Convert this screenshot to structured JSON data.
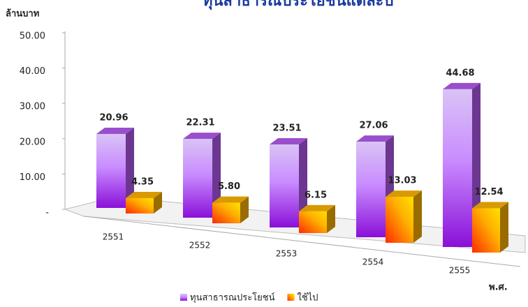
{
  "chart_data": {
    "type": "bar3d",
    "title": "ทุนสาธารณประโยชน์แต่ละปี",
    "y_label": "ล้านบาท",
    "x_label": "พ.ศ.",
    "categories": [
      "2551",
      "2552",
      "2553",
      "2554",
      "2555"
    ],
    "series": [
      {
        "name": "ทุนสาธารณประโยชน์",
        "color": "#b45cf0",
        "values": [
          20.96,
          22.31,
          23.51,
          27.06,
          44.68
        ],
        "value_labels": [
          "20.96",
          "22.31",
          "23.51",
          "27.06",
          "44.68"
        ]
      },
      {
        "name": "ใช้ไป",
        "color": "#ffb400",
        "values": [
          4.35,
          5.8,
          6.15,
          13.03,
          12.54
        ],
        "value_labels": [
          "4.35",
          "5.80",
          "6.15",
          "13.03",
          "12.54"
        ]
      }
    ],
    "ylim": [
      0,
      50
    ],
    "yticks": [
      {
        "value": 0,
        "label": "-"
      },
      {
        "value": 10,
        "label": "10.00"
      },
      {
        "value": 20,
        "label": "20.00"
      },
      {
        "value": 30,
        "label": "30.00"
      },
      {
        "value": 40,
        "label": "40.00"
      },
      {
        "value": 50,
        "label": "50.00"
      }
    ],
    "legend": "bottom"
  }
}
